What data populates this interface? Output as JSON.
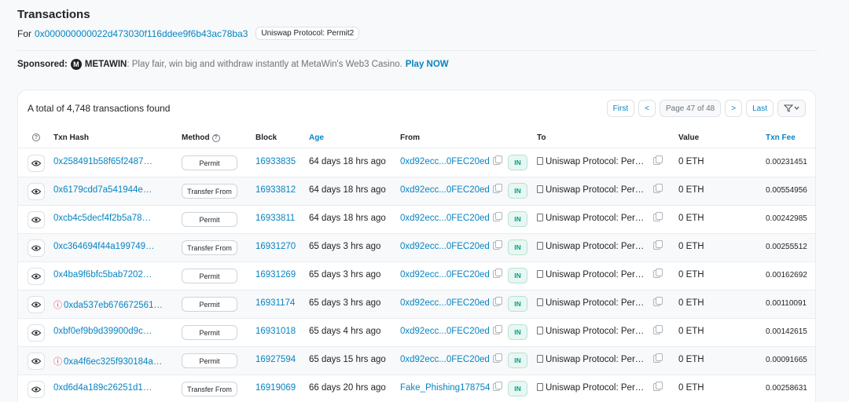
{
  "header": {
    "title": "Transactions",
    "for_label": "For",
    "address": "0x000000000022d473030f116ddee9f6b43ac78ba3",
    "address_tag": "Uniswap Protocol: Permit2"
  },
  "sponsor": {
    "label": "Sponsored:",
    "brand": "METAWIN",
    "text": ": Play fair, win big and withdraw instantly at MetaWin's Web3 Casino.",
    "cta": "Play NOW"
  },
  "card": {
    "total_text": "A total of 4,748 transactions found",
    "pager": {
      "first": "First",
      "prev": "<",
      "page": "Page 47 of 48",
      "next": ">",
      "last": "Last",
      "filter_icon": "filter-icon"
    }
  },
  "columns": {
    "info": "?",
    "hash": "Txn Hash",
    "method": "Method",
    "block": "Block",
    "age": "Age",
    "from": "From",
    "to": "To",
    "value": "Value",
    "fee": "Txn Fee"
  },
  "rows": [
    {
      "hash": "0x258491b58f65f2487…",
      "error": false,
      "method": "Permit",
      "block": "16933835",
      "age": "64 days 18 hrs ago",
      "from": "0xd92ecc...0FEC20ed",
      "dir": "IN",
      "to": "Uniswap Protocol: Per…",
      "value": "0 ETH",
      "fee": "0.00231451"
    },
    {
      "hash": "0x6179cdd7a541944e…",
      "error": false,
      "method": "Transfer From",
      "block": "16933812",
      "age": "64 days 18 hrs ago",
      "from": "0xd92ecc...0FEC20ed",
      "dir": "IN",
      "to": "Uniswap Protocol: Per…",
      "value": "0 ETH",
      "fee": "0.00554956"
    },
    {
      "hash": "0xcb4c5decf4f2b5a78…",
      "error": false,
      "method": "Permit",
      "block": "16933811",
      "age": "64 days 18 hrs ago",
      "from": "0xd92ecc...0FEC20ed",
      "dir": "IN",
      "to": "Uniswap Protocol: Per…",
      "value": "0 ETH",
      "fee": "0.00242985"
    },
    {
      "hash": "0xc364694f44a199749…",
      "error": false,
      "method": "Transfer From",
      "block": "16931270",
      "age": "65 days 3 hrs ago",
      "from": "0xd92ecc...0FEC20ed",
      "dir": "IN",
      "to": "Uniswap Protocol: Per…",
      "value": "0 ETH",
      "fee": "0.00255512"
    },
    {
      "hash": "0x4ba9f6bfc5bab7202…",
      "error": false,
      "method": "Permit",
      "block": "16931269",
      "age": "65 days 3 hrs ago",
      "from": "0xd92ecc...0FEC20ed",
      "dir": "IN",
      "to": "Uniswap Protocol: Per…",
      "value": "0 ETH",
      "fee": "0.00162692"
    },
    {
      "hash": "0xda537eb676672561…",
      "error": true,
      "method": "Permit",
      "block": "16931174",
      "age": "65 days 3 hrs ago",
      "from": "0xd92ecc...0FEC20ed",
      "dir": "IN",
      "to": "Uniswap Protocol: Per…",
      "value": "0 ETH",
      "fee": "0.00110091"
    },
    {
      "hash": "0xbf0ef9b9d39900d9c…",
      "error": false,
      "method": "Permit",
      "block": "16931018",
      "age": "65 days 4 hrs ago",
      "from": "0xd92ecc...0FEC20ed",
      "dir": "IN",
      "to": "Uniswap Protocol: Per…",
      "value": "0 ETH",
      "fee": "0.00142615"
    },
    {
      "hash": "0xa4f6ec325f930184a…",
      "error": true,
      "method": "Permit",
      "block": "16927594",
      "age": "65 days 15 hrs ago",
      "from": "0xd92ecc...0FEC20ed",
      "dir": "IN",
      "to": "Uniswap Protocol: Per…",
      "value": "0 ETH",
      "fee": "0.00091665"
    },
    {
      "hash": "0xd6d4a189c26251d1…",
      "error": false,
      "method": "Transfer From",
      "block": "16919069",
      "age": "66 days 20 hrs ago",
      "from": "Fake_Phishing178754",
      "dir": "IN",
      "to": "Uniswap Protocol: Per…",
      "value": "0 ETH",
      "fee": "0.00258631"
    }
  ]
}
